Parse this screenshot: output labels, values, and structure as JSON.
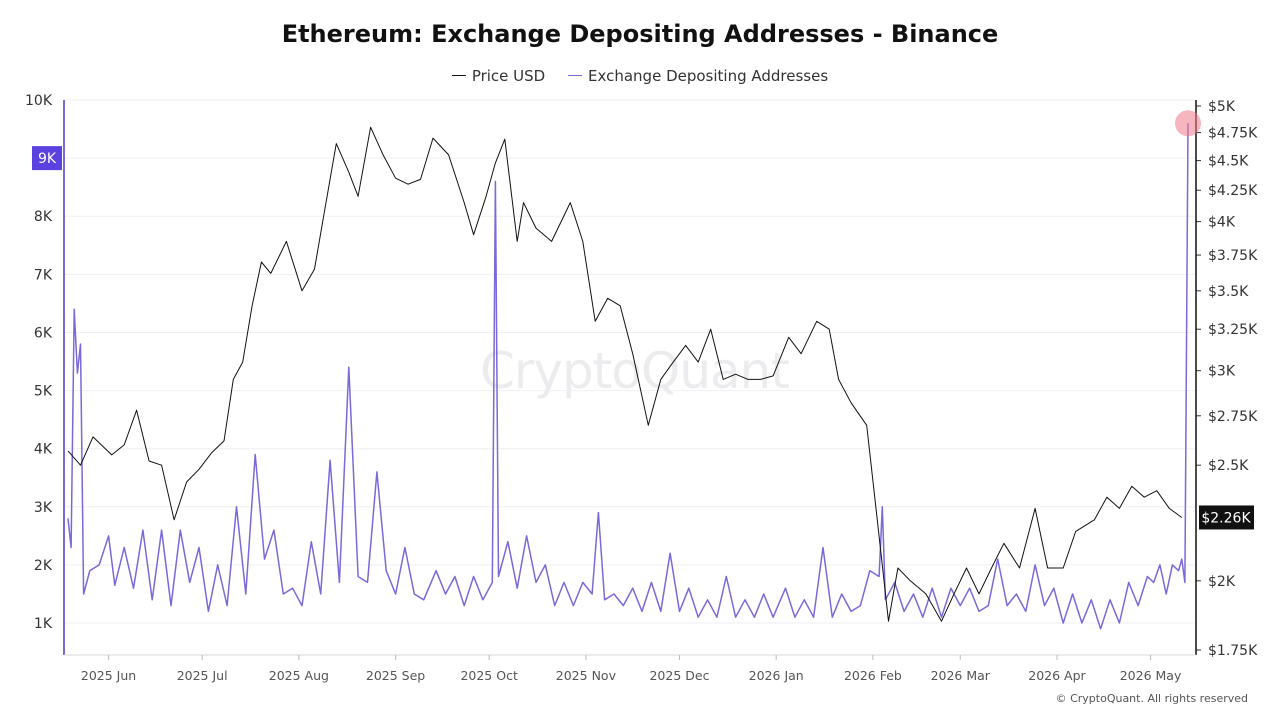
{
  "chart_data": {
    "type": "line",
    "title": "Ethereum: Exchange Depositing Addresses - Binance",
    "legend_position": "top-center",
    "grid": true,
    "x_ticks": [
      "2025 Jun",
      "2025 Jul",
      "2025 Aug",
      "2025 Sep",
      "2025 Oct",
      "2025 Nov",
      "2025 Dec",
      "2026 Jan",
      "2026 Feb",
      "2026 Mar",
      "2026 Apr",
      "2026 May"
    ],
    "x_range": [
      "2025-05-19",
      "2026-05-13"
    ],
    "y_left": {
      "ticks": [
        "10K",
        "9K",
        "8K",
        "7K",
        "6K",
        "5K",
        "4K",
        "3K",
        "2K",
        "1K"
      ],
      "range": [
        450,
        10000
      ],
      "highlight_label": "9K"
    },
    "y_right": {
      "ticks": [
        "$5K",
        "$4.75K",
        "$4.5K",
        "$4.25K",
        "$4K",
        "$3.75K",
        "$3.5K",
        "$3.25K",
        "$3K",
        "$2.75K",
        "$2.5K",
        "$2K",
        "$1.75K"
      ],
      "scale": "log",
      "range": [
        1750,
        5000
      ],
      "current_label": "$2.26K"
    },
    "series": [
      {
        "name": "Price USD",
        "axis": "right",
        "color": "#111111",
        "points": [
          [
            "2025-05-19",
            2570
          ],
          [
            "2025-05-23",
            2500
          ],
          [
            "2025-05-27",
            2640
          ],
          [
            "2025-06-02",
            2550
          ],
          [
            "2025-06-06",
            2600
          ],
          [
            "2025-06-10",
            2780
          ],
          [
            "2025-06-14",
            2520
          ],
          [
            "2025-06-18",
            2500
          ],
          [
            "2025-06-22",
            2250
          ],
          [
            "2025-06-26",
            2420
          ],
          [
            "2025-06-30",
            2480
          ],
          [
            "2025-07-04",
            2560
          ],
          [
            "2025-07-08",
            2620
          ],
          [
            "2025-07-11",
            2950
          ],
          [
            "2025-07-14",
            3050
          ],
          [
            "2025-07-17",
            3400
          ],
          [
            "2025-07-20",
            3700
          ],
          [
            "2025-07-23",
            3620
          ],
          [
            "2025-07-28",
            3850
          ],
          [
            "2025-08-02",
            3500
          ],
          [
            "2025-08-06",
            3650
          ],
          [
            "2025-08-09",
            4050
          ],
          [
            "2025-08-13",
            4650
          ],
          [
            "2025-08-17",
            4400
          ],
          [
            "2025-08-20",
            4200
          ],
          [
            "2025-08-24",
            4800
          ],
          [
            "2025-08-28",
            4550
          ],
          [
            "2025-09-01",
            4350
          ],
          [
            "2025-09-05",
            4300
          ],
          [
            "2025-09-09",
            4340
          ],
          [
            "2025-09-13",
            4700
          ],
          [
            "2025-09-18",
            4550
          ],
          [
            "2025-09-23",
            4150
          ],
          [
            "2025-09-26",
            3900
          ],
          [
            "2025-09-30",
            4200
          ],
          [
            "2025-10-03",
            4480
          ],
          [
            "2025-10-06",
            4690
          ],
          [
            "2025-10-10",
            3850
          ],
          [
            "2025-10-12",
            4150
          ],
          [
            "2025-10-16",
            3950
          ],
          [
            "2025-10-21",
            3850
          ],
          [
            "2025-10-27",
            4150
          ],
          [
            "2025-10-31",
            3850
          ],
          [
            "2025-11-04",
            3300
          ],
          [
            "2025-11-08",
            3450
          ],
          [
            "2025-11-12",
            3400
          ],
          [
            "2025-11-16",
            3100
          ],
          [
            "2025-11-21",
            2700
          ],
          [
            "2025-11-25",
            2950
          ],
          [
            "2025-11-29",
            3050
          ],
          [
            "2025-12-03",
            3150
          ],
          [
            "2025-12-07",
            3050
          ],
          [
            "2025-12-11",
            3250
          ],
          [
            "2025-12-15",
            2950
          ],
          [
            "2025-12-19",
            2980
          ],
          [
            "2025-12-23",
            2950
          ],
          [
            "2025-12-27",
            2950
          ],
          [
            "2025-12-31",
            2970
          ],
          [
            "2026-01-05",
            3200
          ],
          [
            "2026-01-09",
            3100
          ],
          [
            "2026-01-14",
            3300
          ],
          [
            "2026-01-18",
            3250
          ],
          [
            "2026-01-21",
            2950
          ],
          [
            "2026-01-25",
            2820
          ],
          [
            "2026-01-30",
            2700
          ],
          [
            "2026-02-02",
            2300
          ],
          [
            "2026-02-06",
            1850
          ],
          [
            "2026-02-09",
            2050
          ],
          [
            "2026-02-13",
            2000
          ],
          [
            "2026-02-18",
            1950
          ],
          [
            "2026-02-23",
            1850
          ],
          [
            "2026-02-27",
            1950
          ],
          [
            "2026-03-03",
            2050
          ],
          [
            "2026-03-07",
            1950
          ],
          [
            "2026-03-11",
            2050
          ],
          [
            "2026-03-15",
            2150
          ],
          [
            "2026-03-20",
            2050
          ],
          [
            "2026-03-25",
            2300
          ],
          [
            "2026-03-29",
            2050
          ],
          [
            "2026-04-03",
            2050
          ],
          [
            "2026-04-07",
            2200
          ],
          [
            "2026-04-13",
            2250
          ],
          [
            "2026-04-17",
            2350
          ],
          [
            "2026-04-21",
            2300
          ],
          [
            "2026-04-25",
            2400
          ],
          [
            "2026-04-29",
            2350
          ],
          [
            "2026-05-03",
            2380
          ],
          [
            "2026-05-07",
            2300
          ],
          [
            "2026-05-11",
            2260
          ]
        ]
      },
      {
        "name": "Exchange Depositing Addresses",
        "axis": "left",
        "color": "#7b68d9",
        "points": [
          [
            "2025-05-19",
            2800
          ],
          [
            "2025-05-20",
            2300
          ],
          [
            "2025-05-21",
            6400
          ],
          [
            "2025-05-22",
            5300
          ],
          [
            "2025-05-23",
            5800
          ],
          [
            "2025-05-24",
            1500
          ],
          [
            "2025-05-26",
            1900
          ],
          [
            "2025-05-29",
            2000
          ],
          [
            "2025-06-01",
            2500
          ],
          [
            "2025-06-03",
            1650
          ],
          [
            "2025-06-06",
            2300
          ],
          [
            "2025-06-09",
            1600
          ],
          [
            "2025-06-12",
            2600
          ],
          [
            "2025-06-15",
            1400
          ],
          [
            "2025-06-18",
            2600
          ],
          [
            "2025-06-21",
            1300
          ],
          [
            "2025-06-24",
            2600
          ],
          [
            "2025-06-27",
            1700
          ],
          [
            "2025-06-30",
            2300
          ],
          [
            "2025-07-03",
            1200
          ],
          [
            "2025-07-06",
            2000
          ],
          [
            "2025-07-09",
            1300
          ],
          [
            "2025-07-12",
            3000
          ],
          [
            "2025-07-15",
            1500
          ],
          [
            "2025-07-18",
            3900
          ],
          [
            "2025-07-21",
            2100
          ],
          [
            "2025-07-24",
            2600
          ],
          [
            "2025-07-27",
            1500
          ],
          [
            "2025-07-30",
            1600
          ],
          [
            "2025-08-02",
            1300
          ],
          [
            "2025-08-05",
            2400
          ],
          [
            "2025-08-08",
            1500
          ],
          [
            "2025-08-11",
            3800
          ],
          [
            "2025-08-14",
            1700
          ],
          [
            "2025-08-17",
            5400
          ],
          [
            "2025-08-20",
            1800
          ],
          [
            "2025-08-23",
            1700
          ],
          [
            "2025-08-26",
            3600
          ],
          [
            "2025-08-29",
            1900
          ],
          [
            "2025-09-01",
            1500
          ],
          [
            "2025-09-04",
            2300
          ],
          [
            "2025-09-07",
            1500
          ],
          [
            "2025-09-10",
            1400
          ],
          [
            "2025-09-14",
            1900
          ],
          [
            "2025-09-17",
            1500
          ],
          [
            "2025-09-20",
            1800
          ],
          [
            "2025-09-23",
            1300
          ],
          [
            "2025-09-26",
            1800
          ],
          [
            "2025-09-29",
            1400
          ],
          [
            "2025-10-02",
            1700
          ],
          [
            "2025-10-03",
            8600
          ],
          [
            "2025-10-04",
            1800
          ],
          [
            "2025-10-07",
            2400
          ],
          [
            "2025-10-10",
            1600
          ],
          [
            "2025-10-13",
            2500
          ],
          [
            "2025-10-16",
            1700
          ],
          [
            "2025-10-19",
            2000
          ],
          [
            "2025-10-22",
            1300
          ],
          [
            "2025-10-25",
            1700
          ],
          [
            "2025-10-28",
            1300
          ],
          [
            "2025-10-31",
            1700
          ],
          [
            "2025-11-03",
            1500
          ],
          [
            "2025-11-05",
            2900
          ],
          [
            "2025-11-07",
            1400
          ],
          [
            "2025-11-10",
            1500
          ],
          [
            "2025-11-13",
            1300
          ],
          [
            "2025-11-16",
            1600
          ],
          [
            "2025-11-19",
            1200
          ],
          [
            "2025-11-22",
            1700
          ],
          [
            "2025-11-25",
            1200
          ],
          [
            "2025-11-28",
            2200
          ],
          [
            "2025-12-01",
            1200
          ],
          [
            "2025-12-04",
            1600
          ],
          [
            "2025-12-07",
            1100
          ],
          [
            "2025-12-10",
            1400
          ],
          [
            "2025-12-13",
            1100
          ],
          [
            "2025-12-16",
            1800
          ],
          [
            "2025-12-19",
            1100
          ],
          [
            "2025-12-22",
            1400
          ],
          [
            "2025-12-25",
            1100
          ],
          [
            "2025-12-28",
            1500
          ],
          [
            "2025-12-31",
            1100
          ],
          [
            "2026-01-04",
            1600
          ],
          [
            "2026-01-07",
            1100
          ],
          [
            "2026-01-10",
            1400
          ],
          [
            "2026-01-13",
            1100
          ],
          [
            "2026-01-16",
            2300
          ],
          [
            "2026-01-19",
            1100
          ],
          [
            "2026-01-22",
            1500
          ],
          [
            "2026-01-25",
            1200
          ],
          [
            "2026-01-28",
            1300
          ],
          [
            "2026-01-31",
            1900
          ],
          [
            "2026-02-03",
            1800
          ],
          [
            "2026-02-04",
            3000
          ],
          [
            "2026-02-05",
            1400
          ],
          [
            "2026-02-08",
            1700
          ],
          [
            "2026-02-11",
            1200
          ],
          [
            "2026-02-14",
            1500
          ],
          [
            "2026-02-17",
            1100
          ],
          [
            "2026-02-20",
            1600
          ],
          [
            "2026-02-23",
            1100
          ],
          [
            "2026-02-26",
            1600
          ],
          [
            "2026-03-01",
            1300
          ],
          [
            "2026-03-04",
            1600
          ],
          [
            "2026-03-07",
            1200
          ],
          [
            "2026-03-10",
            1300
          ],
          [
            "2026-03-13",
            2100
          ],
          [
            "2026-03-16",
            1300
          ],
          [
            "2026-03-19",
            1500
          ],
          [
            "2026-03-22",
            1200
          ],
          [
            "2026-03-25",
            2000
          ],
          [
            "2026-03-28",
            1300
          ],
          [
            "2026-03-31",
            1600
          ],
          [
            "2026-04-03",
            1000
          ],
          [
            "2026-04-06",
            1500
          ],
          [
            "2026-04-09",
            1000
          ],
          [
            "2026-04-12",
            1400
          ],
          [
            "2026-04-15",
            900
          ],
          [
            "2026-04-18",
            1400
          ],
          [
            "2026-04-21",
            1000
          ],
          [
            "2026-04-24",
            1700
          ],
          [
            "2026-04-27",
            1300
          ],
          [
            "2026-04-30",
            1800
          ],
          [
            "2026-05-02",
            1700
          ],
          [
            "2026-05-04",
            2000
          ],
          [
            "2026-05-06",
            1500
          ],
          [
            "2026-05-08",
            2000
          ],
          [
            "2026-05-10",
            1900
          ],
          [
            "2026-05-11",
            2100
          ],
          [
            "2026-05-12",
            1700
          ],
          [
            "2026-05-13",
            9600
          ]
        ]
      }
    ]
  },
  "watermark": "CryptoQuant",
  "copyright": "© CryptoQuant. All rights reserved"
}
